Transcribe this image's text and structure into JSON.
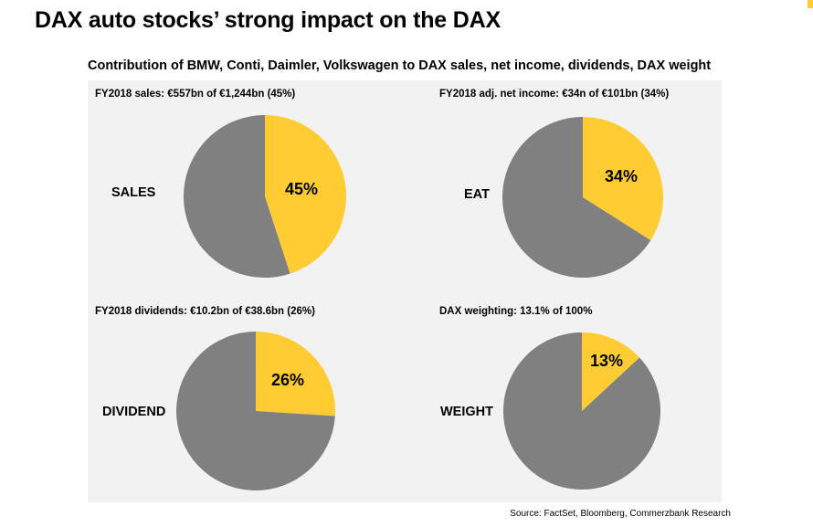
{
  "page": {
    "title": "DAX auto stocks’ strong impact on the DAX",
    "subtitle": "Contribution of BMW, Conti, Daimler, Volkswagen to DAX sales, net income, dividends, DAX weight",
    "source": "Source: FactSet, Bloomberg, Commerzbank Research"
  },
  "colors": {
    "accent": "#FFCC33",
    "remainder": "#808080",
    "panel_background": "#F2F2F2"
  },
  "chart_data": [
    {
      "type": "pie",
      "header": "FY2018 sales: €557bn of €1,244bn (45%)",
      "name": "SALES",
      "slices": [
        {
          "value": 45,
          "label": "45%",
          "color": "#FFCC33"
        },
        {
          "value": 55,
          "label": "",
          "color": "#808080"
        }
      ]
    },
    {
      "type": "pie",
      "header": "FY2018 adj. net income: €34n of €101bn (34%)",
      "name": "EAT",
      "slices": [
        {
          "value": 34,
          "label": "34%",
          "color": "#FFCC33"
        },
        {
          "value": 66,
          "label": "",
          "color": "#808080"
        }
      ]
    },
    {
      "type": "pie",
      "header": "FY2018 dividends: €10.2bn of €38.6bn (26%)",
      "name": "DIVIDEND",
      "slices": [
        {
          "value": 26,
          "label": "26%",
          "color": "#FFCC33"
        },
        {
          "value": 74,
          "label": "",
          "color": "#808080"
        }
      ]
    },
    {
      "type": "pie",
      "header": "DAX weighting: 13.1% of 100%",
      "name": "WEIGHT",
      "slices": [
        {
          "value": 13.1,
          "label": "13%",
          "color": "#FFCC33"
        },
        {
          "value": 86.9,
          "label": "",
          "color": "#808080"
        }
      ]
    }
  ]
}
